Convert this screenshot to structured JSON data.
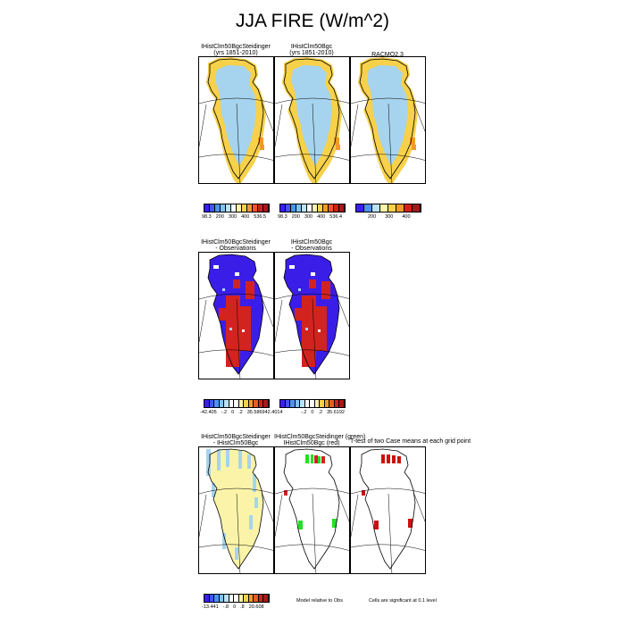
{
  "title": "JJA FIRE (W/m^2)",
  "row1": {
    "panels": [
      {
        "title1": "IHistClm50BgcSteidinger",
        "title2": "(yrs 1851-2010)"
      },
      {
        "title1": "IHistClm50Bgc",
        "title2": "(yrs 1851-2010)"
      },
      {
        "title1": "RACMO2.3",
        "title2": ""
      }
    ],
    "colorbars": [
      {
        "ticks": [
          "98.3",
          "200",
          "300",
          "400",
          "536.5"
        ]
      },
      {
        "ticks": [
          "98.3",
          "200",
          "300",
          "400",
          "536.4"
        ]
      },
      {
        "ticks": [
          "200",
          "300",
          "400"
        ]
      }
    ]
  },
  "row2": {
    "panels": [
      {
        "title1": "IHistClm50BgcSteidinger",
        "title2": "- Observations"
      },
      {
        "title1": "IHistClm50Bgc",
        "title2": "- Observations"
      }
    ],
    "colorbars": [
      {
        "ticks": [
          "-42.405",
          "-.2",
          "0",
          ".2",
          "35.586942.4014"
        ]
      },
      {
        "ticks": [
          "-.2",
          "0",
          ".2",
          "35.6192"
        ]
      }
    ]
  },
  "row3": {
    "panels": [
      {
        "title1": "IHistClm50BgcSteidinger",
        "title2": "- IHistClm50Bgc"
      },
      {
        "title1": "IHistClm50BgcSteidinger (green)",
        "title2": "IHistClm50Bgc (red)"
      },
      {
        "title1": "T-test of two Case means at each grid point",
        "title2": ""
      }
    ],
    "colorbars": [
      {
        "ticks": [
          "-13.441",
          "-.8",
          "0",
          ".8",
          "20.608"
        ]
      }
    ],
    "note_model": "Model relative to Obs",
    "note_cells": "Cells are significant at 0.1 level"
  },
  "colors": {
    "ice": "#a6d4ee",
    "cream": "#fbf4a8",
    "yellow": "#f7d14a",
    "orange": "#f29a28",
    "blue": "#3a1ee8",
    "red": "#d2231f",
    "green": "#22e222",
    "darkred": "#cc1010",
    "palette_fire": [
      "#3b1ef0",
      "#3f56f5",
      "#4f91f5",
      "#7fc3f2",
      "#b8e2f5",
      "#ffffff",
      "#fbf4a8",
      "#f7d14a",
      "#f29a28",
      "#ea5b1e",
      "#d0201a",
      "#a5191b"
    ],
    "palette_fire_short": [
      "#3b1ef0",
      "#4f91f5",
      "#b8e2f5",
      "#fbf4a8",
      "#f7d14a",
      "#f29a28",
      "#d0201a",
      "#a5191b"
    ],
    "palette_diff": [
      "#3b1ef0",
      "#3f56f5",
      "#4f91f5",
      "#7fc3f2",
      "#b8e2f5",
      "#ffffff",
      "#ffffff",
      "#fbf4a8",
      "#f7d14a",
      "#f29a28",
      "#ea5b1e",
      "#d0201a",
      "#a5191b"
    ]
  },
  "chart_data": {
    "type": "heatmap",
    "title": "JJA FIRE (W/m^2)",
    "units": "W/m^2",
    "maps": [
      {
        "row": 1,
        "title": "IHistClm50BgcSteidinger (yrs 1851-2010)",
        "range": [
          98.3,
          536.5
        ]
      },
      {
        "row": 1,
        "title": "IHistClm50Bgc (yrs 1851-2010)",
        "range": [
          98.3,
          536.4
        ]
      },
      {
        "row": 1,
        "title": "RACMO2.3",
        "range": [
          200,
          400
        ]
      },
      {
        "row": 2,
        "title": "IHistClm50BgcSteidinger - Observations",
        "range": [
          -42.405,
          35.5869
        ]
      },
      {
        "row": 2,
        "title": "IHistClm50Bgc - Observations",
        "range": [
          -42.4014,
          35.6192
        ]
      },
      {
        "row": 3,
        "title": "IHistClm50BgcSteidinger - IHistClm50Bgc",
        "range": [
          -13.441,
          20.608
        ]
      },
      {
        "row": 3,
        "title": "IHistClm50BgcSteidinger (green) IHistClm50Bgc (red)"
      },
      {
        "row": 3,
        "title": "T-test of two Case means at each grid point"
      }
    ]
  }
}
